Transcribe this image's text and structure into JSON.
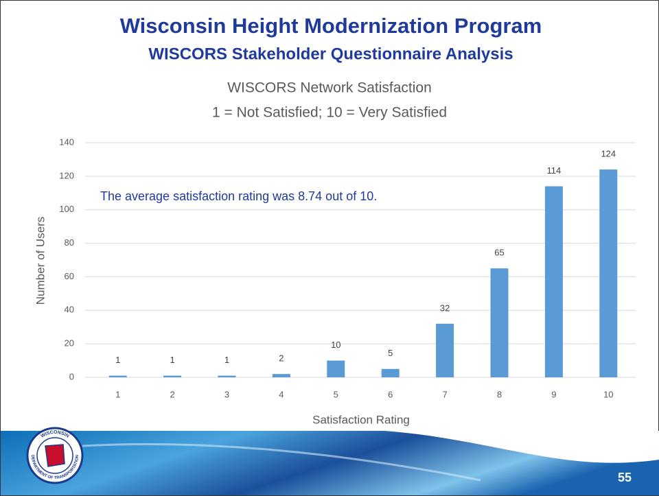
{
  "slide": {
    "title": "Wisconsin Height Modernization Program",
    "subtitle": "WISCORS Stakeholder Questionnaire Analysis",
    "page_number": "55",
    "logo_top": "WISCONSIN",
    "logo_bottom": "DEPARTMENT OF TRANSPORTATION"
  },
  "chart_data": {
    "type": "bar",
    "title": "WISCORS Network Satisfaction",
    "subtitle": "1 = Not Satisfied; 10 = Very Satisfied",
    "annotation": "The average satisfaction rating was 8.74 out of 10.",
    "x_label": "Satisfaction Rating",
    "y_label": "Number of Users",
    "categories": [
      "1",
      "2",
      "3",
      "4",
      "5",
      "6",
      "7",
      "8",
      "9",
      "10"
    ],
    "values": [
      1,
      1,
      1,
      2,
      10,
      5,
      32,
      65,
      114,
      124
    ],
    "color": "#5b9bd5",
    "ylim": [
      0,
      140
    ],
    "yticks": [
      0,
      20,
      40,
      60,
      80,
      100,
      120,
      140
    ],
    "grid": true
  }
}
